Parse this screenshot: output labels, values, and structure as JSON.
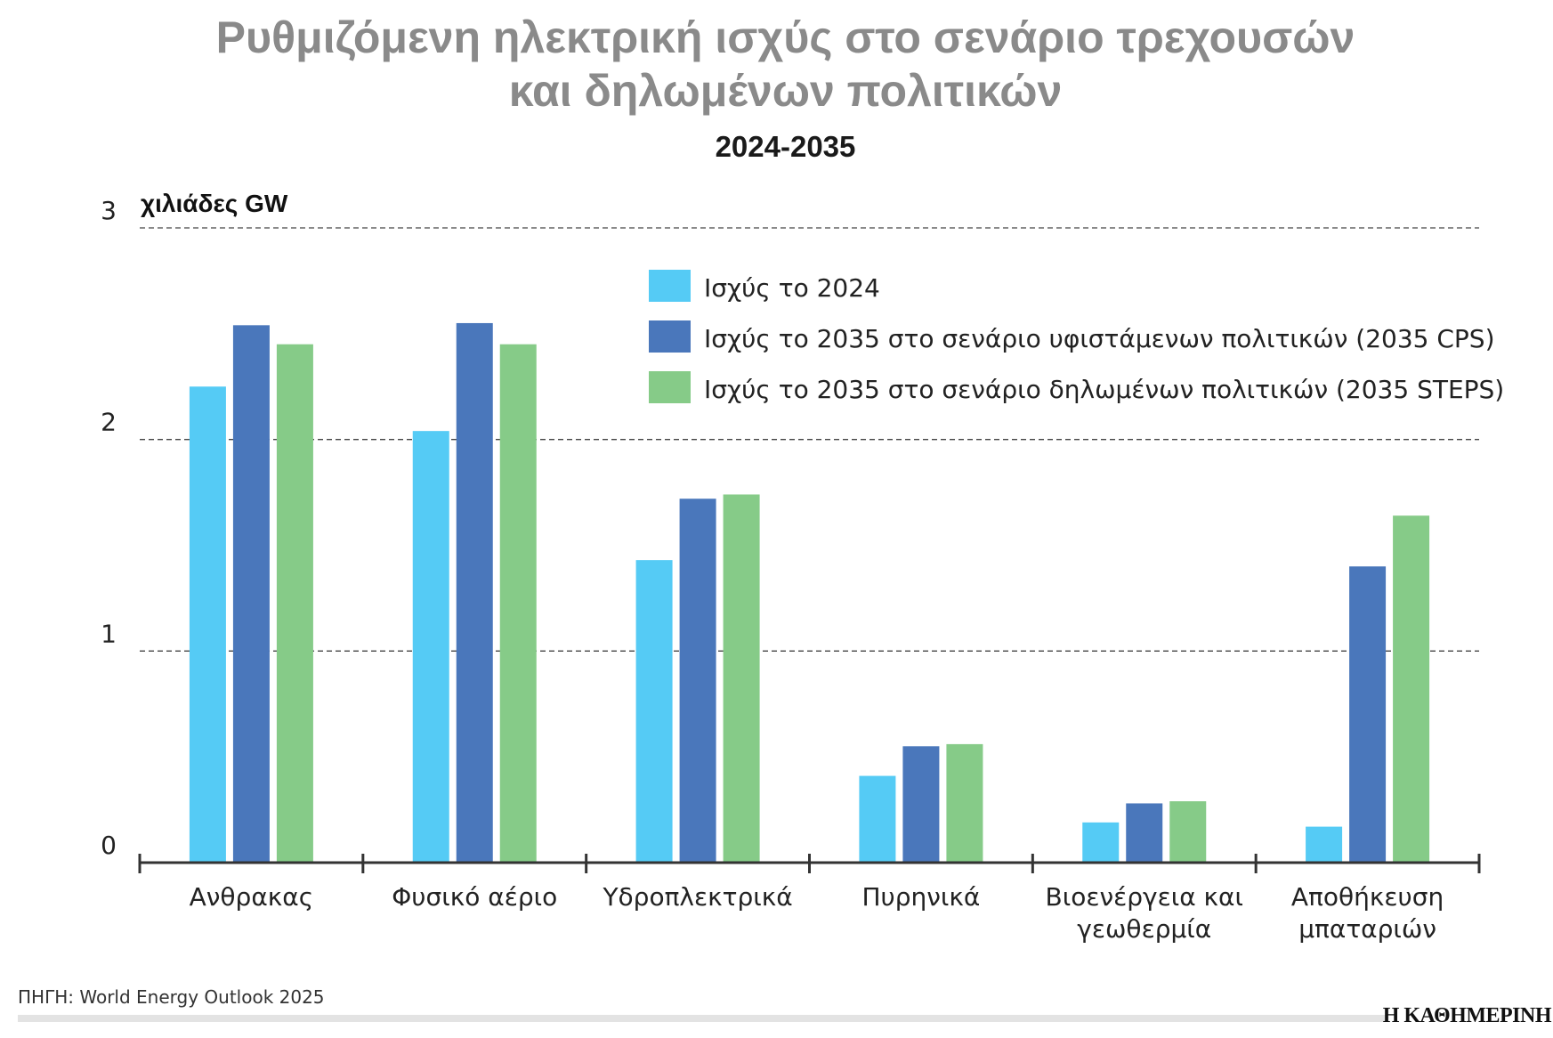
{
  "title_lines": [
    "Ρυθμιζόμενη ηλεκτρική ισχύς στο σενάριο τρεχουσών",
    "και δηλωμένων πολιτικών"
  ],
  "subtitle": "2024-2035",
  "source": "ΠΗΓΗ: World Energy Outlook 2025",
  "logo": "Η ΚΑΘΗΜΕΡΙΝΗ",
  "chart_data": {
    "type": "bar",
    "ylabel": "χιλιάδες GW",
    "ylim": [
      0,
      3
    ],
    "yticks": [
      "0",
      "1",
      "2",
      "3"
    ],
    "grid": true,
    "legend_position": "top-right",
    "categories": [
      [
        "Ανθρακας"
      ],
      [
        "Φυσικό αέριο"
      ],
      [
        "Υδροπλεκτρικά"
      ],
      [
        "Πυρηνικά"
      ],
      [
        "Βιοενέργεια και",
        "γεωθερμία"
      ],
      [
        "Αποθήκευση",
        "μπαταριών"
      ]
    ],
    "series": [
      {
        "name": "Ισχύς το 2024",
        "color": "#55cbf5",
        "values": [
          2.25,
          2.04,
          1.43,
          0.41,
          0.19,
          0.17
        ]
      },
      {
        "name": "Ισχύς το 2035 στο σενάριο υφιστάμενων πολιτικών (2035 CPS)",
        "color": "#4a77bb",
        "values": [
          2.54,
          2.55,
          1.72,
          0.55,
          0.28,
          1.4
        ]
      },
      {
        "name": "Ισχύς το 2035 στο σενάριο δηλωμένων πολιτικών (2035 STEPS)",
        "color": "#86cb88",
        "values": [
          2.45,
          2.45,
          1.74,
          0.56,
          0.29,
          1.64
        ]
      }
    ]
  }
}
